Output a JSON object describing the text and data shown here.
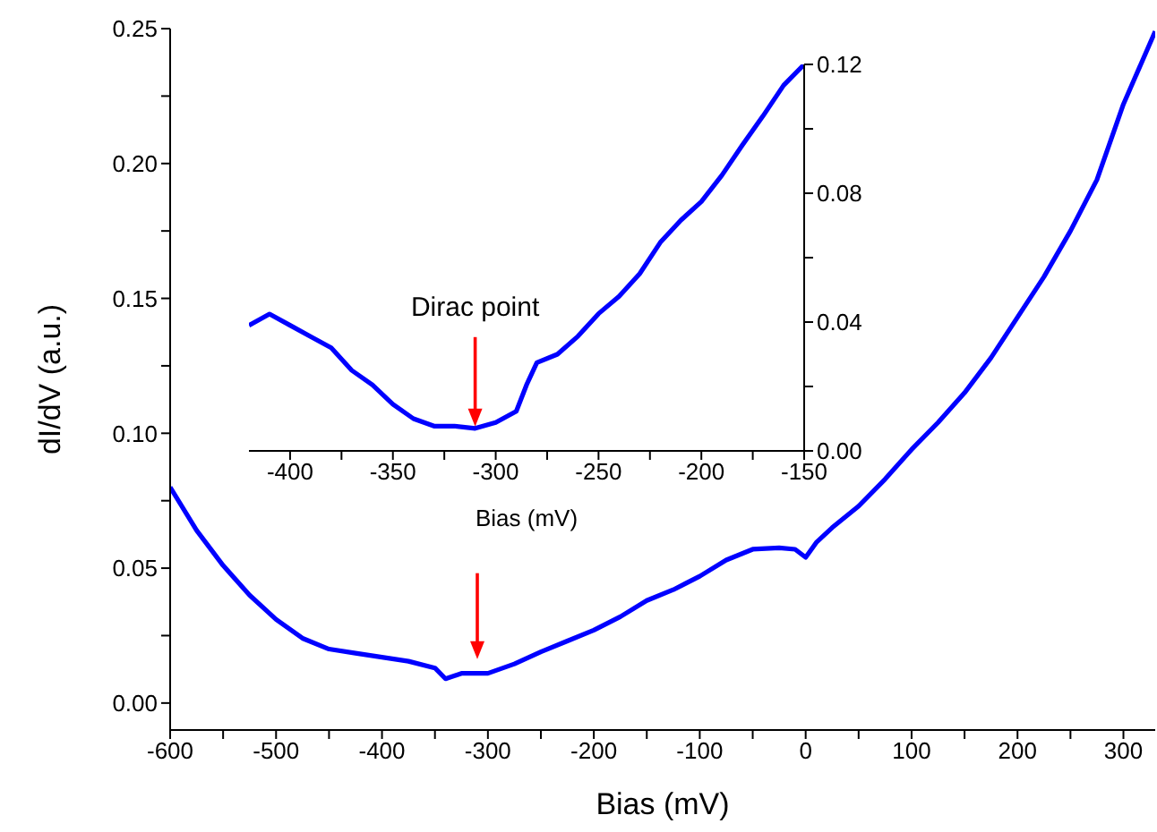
{
  "chart_data": [
    {
      "type": "line",
      "xlabel": "Bias (mV)",
      "ylabel": "dI/dV (a.u.)",
      "xlim": [
        -600,
        330
      ],
      "ylim": [
        -0.01,
        0.25
      ],
      "xticks": [
        -600,
        {
          "value": -550,
          "label": null
        },
        -500,
        {
          "value": -450,
          "label": null
        },
        -400,
        {
          "value": -350,
          "label": null
        },
        -300,
        {
          "value": -250,
          "label": null
        },
        -200,
        {
          "value": -150,
          "label": null
        },
        -100,
        {
          "value": -50,
          "label": null
        },
        0,
        {
          "value": 50,
          "label": null
        },
        100,
        {
          "value": 150,
          "label": null
        },
        200,
        {
          "value": 250,
          "label": null
        },
        300
      ],
      "yticks": [
        {
          "value": 0,
          "label": "0.00"
        },
        {
          "value": 0.025,
          "label": null
        },
        {
          "value": 0.05,
          "label": "0.05"
        },
        {
          "value": 0.075,
          "label": null
        },
        {
          "value": 0.1,
          "label": "0.10"
        },
        {
          "value": 0.125,
          "label": null
        },
        {
          "value": 0.15,
          "label": "0.15"
        },
        {
          "value": 0.175,
          "label": null
        },
        {
          "value": 0.2,
          "label": "0.20"
        },
        {
          "value": 0.225,
          "label": null
        },
        {
          "value": 0.25,
          "label": "0.25"
        }
      ],
      "x": [
        -600,
        -575,
        -550,
        -525,
        -500,
        -475,
        -450,
        -425,
        -400,
        -375,
        -350,
        -340,
        -325,
        -300,
        -275,
        -250,
        -225,
        -200,
        -175,
        -150,
        -125,
        -100,
        -75,
        -50,
        -25,
        -10,
        0,
        10,
        25,
        50,
        75,
        100,
        125,
        150,
        175,
        200,
        225,
        250,
        275,
        300,
        330
      ],
      "series": [
        {
          "color": "#0000ff",
          "values": [
            0.08,
            0.064,
            0.051,
            0.04,
            0.031,
            0.024,
            0.02,
            0.0185,
            0.017,
            0.0155,
            0.013,
            0.009,
            0.011,
            0.011,
            0.0145,
            0.019,
            0.023,
            0.027,
            0.032,
            0.038,
            0.042,
            0.047,
            0.053,
            0.057,
            0.0575,
            0.057,
            0.054,
            0.0595,
            0.065,
            0.073,
            0.083,
            0.094,
            0.104,
            0.115,
            0.128,
            0.143,
            0.158,
            0.175,
            0.194,
            0.222,
            0.249
          ]
        }
      ],
      "grid": false,
      "legend": false,
      "marker": "none",
      "line_style": "solid"
    },
    {
      "type": "line",
      "xlabel": "Bias (mV)",
      "xlim": [
        -420,
        -150
      ],
      "ylim": [
        0,
        0.12
      ],
      "xticks": [
        -400,
        {
          "value": -375,
          "label": null
        },
        -350,
        {
          "value": -325,
          "label": null
        },
        -300,
        {
          "value": -275,
          "label": null
        },
        -250,
        {
          "value": -225,
          "label": null
        },
        -200,
        {
          "value": -175,
          "label": null
        },
        -150
      ],
      "yticks": [
        {
          "value": 0,
          "label": "0.00"
        },
        {
          "value": 0.02,
          "label": null
        },
        {
          "value": 0.04,
          "label": "0.04"
        },
        {
          "value": 0.06,
          "label": null
        },
        {
          "value": 0.08,
          "label": "0.08"
        },
        {
          "value": 0.1,
          "label": null
        },
        {
          "value": 0.12,
          "label": "0.12"
        }
      ],
      "x": [
        -420,
        -410,
        -400,
        -390,
        -380,
        -370,
        -360,
        -350,
        -340,
        -330,
        -320,
        -310,
        -300,
        -290,
        -285,
        -280,
        -270,
        -260,
        -250,
        -240,
        -230,
        -220,
        -210,
        -200,
        -190,
        -180,
        -170,
        -160,
        -150
      ],
      "series": [
        {
          "color": "#0000ff",
          "values": [
            0.039,
            0.0425,
            0.039,
            0.0355,
            0.032,
            0.025,
            0.0205,
            0.0145,
            0.01,
            0.0077,
            0.0077,
            0.007,
            0.0088,
            0.0123,
            0.0205,
            0.0274,
            0.03,
            0.0356,
            0.0426,
            0.048,
            0.055,
            0.0647,
            0.0716,
            0.0774,
            0.0856,
            0.095,
            0.104,
            0.1135,
            0.12
          ]
        }
      ],
      "annotations": [
        "Dirac point"
      ],
      "grid": false,
      "legend": false,
      "marker": "none",
      "line_style": "solid"
    }
  ]
}
